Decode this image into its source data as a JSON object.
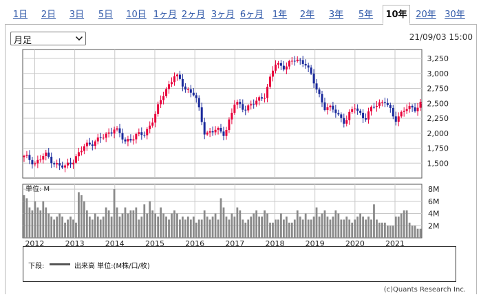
{
  "tabs": [
    {
      "label": "1日",
      "active": false
    },
    {
      "label": "2日",
      "active": false
    },
    {
      "label": "3日",
      "active": false
    },
    {
      "label": "5日",
      "active": false
    },
    {
      "label": "10日",
      "active": false
    },
    {
      "label": "1ヶ月",
      "active": false
    },
    {
      "label": "2ヶ月",
      "active": false
    },
    {
      "label": "3ヶ月",
      "active": false
    },
    {
      "label": "6ヶ月",
      "active": false
    },
    {
      "label": "1年",
      "active": false
    },
    {
      "label": "2年",
      "active": false
    },
    {
      "label": "3年",
      "active": false
    },
    {
      "label": "5年",
      "active": false
    },
    {
      "label": "10年",
      "active": true
    },
    {
      "label": "20年",
      "active": false
    },
    {
      "label": "30年",
      "active": false
    }
  ],
  "period_select": {
    "value": "月足"
  },
  "timestamp": "21/09/03 15:00",
  "legend": {
    "prefix": "下段:",
    "text": "出来高 単位:(M株/口/枚)"
  },
  "credit": "(c)Quants Research Inc.",
  "colors": {
    "up": "#e8003b",
    "down": "#1a2a9c",
    "volume": "#8a8a8a",
    "grid": "#c8c8c8",
    "axis": "#555555"
  },
  "chart_data": [
    {
      "type": "candlestick",
      "interval": "monthly",
      "y_ticks": [
        "3,250",
        "3,000",
        "2,750",
        "2,500",
        "2,250",
        "2,000",
        "1,750",
        "1,500"
      ],
      "y_tick_values": [
        3250,
        3000,
        2750,
        2500,
        2250,
        2000,
        1750,
        1500
      ],
      "ylim": [
        1250,
        3400
      ],
      "x_labels": [
        "2012",
        "2013",
        "2014",
        "2015",
        "2016",
        "2017",
        "2018",
        "2019",
        "2020",
        "2021"
      ],
      "x_range": [
        2011.7,
        2021.67
      ],
      "waypoints": [
        [
          2011.75,
          1600
        ],
        [
          2012.0,
          1500
        ],
        [
          2012.25,
          1640
        ],
        [
          2012.5,
          1500
        ],
        [
          2012.75,
          1420
        ],
        [
          2013.0,
          1580
        ],
        [
          2013.25,
          1780
        ],
        [
          2013.5,
          1870
        ],
        [
          2013.75,
          1940
        ],
        [
          2014.0,
          2100
        ],
        [
          2014.25,
          1850
        ],
        [
          2014.5,
          1960
        ],
        [
          2014.75,
          1980
        ],
        [
          2015.0,
          2300
        ],
        [
          2015.25,
          2700
        ],
        [
          2015.5,
          2980
        ],
        [
          2015.75,
          2760
        ],
        [
          2016.0,
          2650
        ],
        [
          2016.25,
          2000
        ],
        [
          2016.5,
          2050
        ],
        [
          2016.75,
          2000
        ],
        [
          2017.0,
          2500
        ],
        [
          2017.25,
          2420
        ],
        [
          2017.5,
          2500
        ],
        [
          2017.75,
          2650
        ],
        [
          2018.0,
          3150
        ],
        [
          2018.25,
          3120
        ],
        [
          2018.5,
          3220
        ],
        [
          2018.75,
          3200
        ],
        [
          2019.0,
          2800
        ],
        [
          2019.25,
          2430
        ],
        [
          2019.5,
          2380
        ],
        [
          2019.75,
          2180
        ],
        [
          2020.0,
          2450
        ],
        [
          2020.25,
          2230
        ],
        [
          2020.5,
          2490
        ],
        [
          2020.75,
          2530
        ],
        [
          2021.0,
          2230
        ],
        [
          2021.25,
          2400
        ],
        [
          2021.5,
          2420
        ],
        [
          2021.67,
          2520
        ]
      ]
    },
    {
      "type": "bar",
      "name": "出来高",
      "unit_label": "単位: M",
      "y_ticks": [
        "8M",
        "6M",
        "4M",
        "2M"
      ],
      "y_tick_values": [
        8,
        6,
        4,
        2
      ],
      "ylim": [
        0,
        8.8
      ],
      "x_range": [
        2011.7,
        2021.67
      ],
      "values": [
        7,
        6.5,
        5,
        4.5,
        6,
        5,
        4.5,
        6,
        5,
        4,
        3.5,
        3,
        3.5,
        4,
        3.5,
        2.5,
        3,
        3.5,
        3,
        2.5,
        7.5,
        7,
        6,
        4.5,
        3.5,
        3,
        4,
        3.5,
        3,
        3.5,
        5,
        4.5,
        3.5,
        8,
        5,
        3.5,
        4,
        5,
        4,
        4.5,
        4.5,
        5,
        3,
        3.5,
        5.5,
        4,
        6,
        4.5,
        4,
        3.5,
        5,
        4,
        3.5,
        3,
        4,
        4.5,
        4,
        3,
        3.5,
        3,
        3.5,
        3,
        3.5,
        2.5,
        3,
        3,
        4.5,
        3.5,
        3,
        3.5,
        4,
        3,
        6.5,
        5,
        3.5,
        3,
        4,
        3.5,
        5,
        4.5,
        3,
        2.5,
        3,
        3.5,
        4,
        4.5,
        3.5,
        3.5,
        4.5,
        4,
        2.5,
        2.5,
        3,
        3,
        4,
        3,
        3.5,
        2.5,
        2.5,
        3,
        4.5,
        3.5,
        3,
        4,
        3,
        3,
        3.5,
        5,
        3.5,
        4,
        4.5,
        3.5,
        3,
        3.5,
        4.5,
        4,
        3,
        3,
        3.5,
        3,
        2.5,
        3,
        3.5,
        4,
        3.5,
        3,
        3.5,
        3,
        5.5,
        3,
        2.5,
        2.5,
        2.5,
        2,
        2,
        2,
        3.5,
        3.5,
        4,
        4.5,
        4.5,
        2.5,
        2,
        2,
        1.5,
        1.5
      ]
    }
  ]
}
